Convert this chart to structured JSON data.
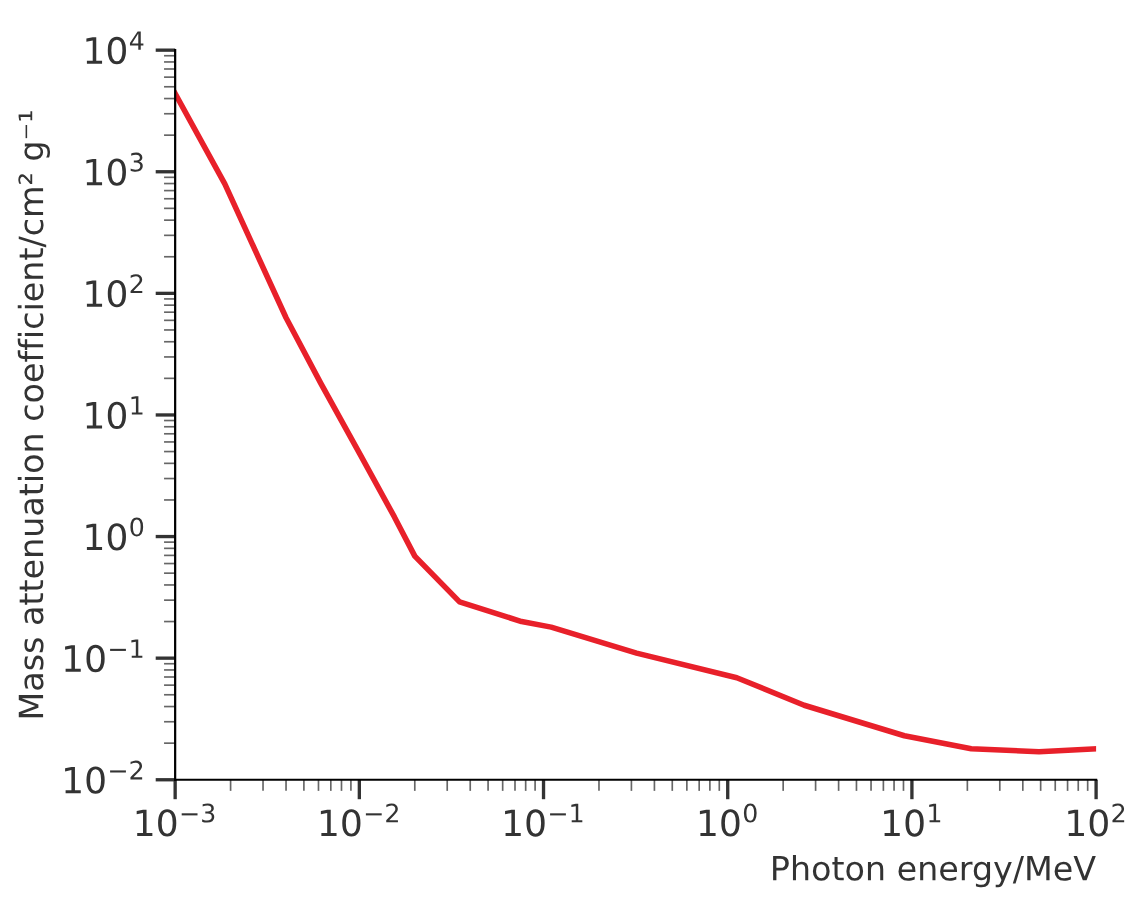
{
  "chart_data": {
    "type": "line",
    "xlabel": "Photon energy/MeV",
    "ylabel": "Mass attenuation coefficient/cm² g⁻¹",
    "log": "xy",
    "grid": false,
    "legend": false,
    "marker": "none",
    "line_style": "solid",
    "xlim": [
      0.001,
      100
    ],
    "ylim": [
      0.01,
      10000
    ],
    "xticks": [
      {
        "value": 0.001,
        "label": "10$^{−3}$"
      },
      {
        "value": 0.01,
        "label": "10$^{−2}$"
      },
      {
        "value": 0.1,
        "label": "10$^{−1}$"
      },
      {
        "value": 1,
        "label": "10$^{0}$"
      },
      {
        "value": 10,
        "label": "10$^{1}$"
      },
      {
        "value": 100,
        "label": "10$^{2}$"
      }
    ],
    "yticks": [
      {
        "value": 0.01,
        "label": "10$^{−2}$"
      },
      {
        "value": 0.1,
        "label": "10$^{−1}$"
      },
      {
        "value": 1,
        "label": "10$^{0}$"
      },
      {
        "value": 10,
        "label": "10$^{1}$"
      },
      {
        "value": 100,
        "label": "10$^{2}$"
      },
      {
        "value": 1000,
        "label": "10$^{3}$"
      },
      {
        "value": 10000,
        "label": "10$^{4}$"
      }
    ],
    "series": [
      {
        "color": "#e8202a",
        "x": [
          0.001,
          0.00186,
          0.004,
          0.0062,
          0.0102,
          0.0155,
          0.02,
          0.035,
          0.076,
          0.11,
          0.32,
          1.12,
          2.6,
          9.1,
          21,
          49,
          100
        ],
        "values": [
          4400,
          794,
          63,
          18,
          4.6,
          1.45,
          0.69,
          0.29,
          0.2,
          0.18,
          0.11,
          0.069,
          0.041,
          0.023,
          0.018,
          0.017,
          0.018
        ]
      }
    ]
  }
}
